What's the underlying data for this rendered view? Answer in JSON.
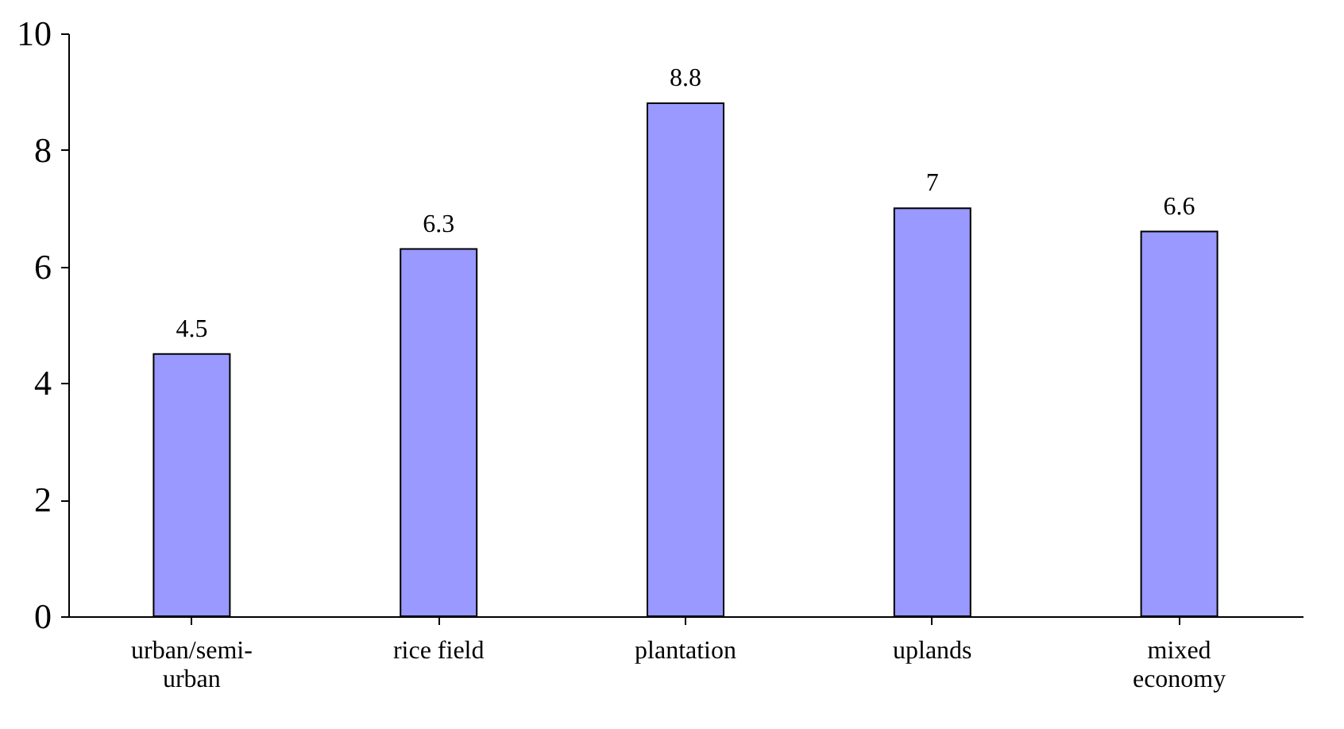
{
  "chart_data": {
    "type": "bar",
    "categories": [
      "urban/semi-urban",
      "rice field",
      "plantation",
      "uplands",
      "mixed economy"
    ],
    "values": [
      4.5,
      6.3,
      8.8,
      7,
      6.6
    ],
    "color": "#9999ff",
    "ylim": [
      0,
      10
    ],
    "yticks": [
      0,
      2,
      4,
      6,
      8,
      10
    ],
    "grid": false,
    "data_labels": true
  }
}
